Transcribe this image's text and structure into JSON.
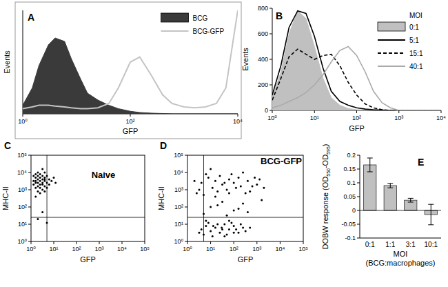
{
  "chart_data": [
    {
      "label": "A",
      "type": "line",
      "xlabel": "GFP",
      "ylabel": "Events",
      "log": "x",
      "x": [
        1,
        1.5,
        2,
        3,
        4,
        6,
        8,
        12,
        16,
        25,
        40,
        60,
        100,
        150,
        250,
        400,
        600,
        1000,
        1600,
        2500,
        4000,
        6000,
        10000
      ],
      "xlim": [
        1,
        10000
      ],
      "xticks": [
        {
          "value": 1,
          "label": "10⁰"
        },
        {
          "value": 100,
          "label": "10²"
        },
        {
          "value": 10000,
          "label": "10⁴"
        }
      ],
      "ylim": [
        0,
        600
      ],
      "tick_labels": "x",
      "legend": "top right",
      "series": [
        {
          "name": "BCG",
          "type": "area",
          "color": "#3a3a3a",
          "values": [
            50,
            150,
            280,
            400,
            440,
            420,
            320,
            200,
            120,
            80,
            50,
            30,
            15,
            8,
            4,
            2,
            0,
            0,
            0,
            0,
            0,
            0,
            0
          ]
        },
        {
          "name": "BCG-GFP",
          "type": "line",
          "color": "#c4c4c4",
          "values": [
            30,
            40,
            50,
            50,
            45,
            40,
            35,
            30,
            30,
            35,
            60,
            150,
            300,
            330,
            220,
            110,
            60,
            40,
            35,
            40,
            60,
            150,
            600
          ]
        }
      ]
    },
    {
      "label": "B",
      "type": "line",
      "xlabel": "GFP",
      "ylabel": "Events",
      "log": "x",
      "x": [
        1,
        1.6,
        2.5,
        4,
        6.3,
        10,
        16,
        25,
        40,
        63,
        100,
        160,
        250,
        400,
        630,
        1000,
        2500,
        10000
      ],
      "xlim": [
        1,
        10000
      ],
      "xticks": [
        {
          "value": 1,
          "label": "10⁰"
        },
        {
          "value": 10,
          "label": "10¹"
        },
        {
          "value": 100,
          "label": "10²"
        },
        {
          "value": 1000,
          "label": "10³"
        },
        {
          "value": 10000,
          "label": "10⁴"
        }
      ],
      "ylim": [
        0,
        800
      ],
      "yticks": [
        0,
        200,
        400,
        600,
        800
      ],
      "legend": "top right",
      "legend_title": "MOI",
      "series": [
        {
          "name": "0:1",
          "type": "area",
          "color": "#c0c0c0",
          "values": [
            100,
            300,
            600,
            780,
            720,
            500,
            250,
            100,
            40,
            15,
            5,
            2,
            0,
            0,
            0,
            0,
            0,
            0
          ]
        },
        {
          "name": "5:1",
          "type": "line",
          "color": "#000000",
          "line_style": "solid",
          "values": [
            120,
            350,
            650,
            780,
            760,
            580,
            330,
            150,
            70,
            40,
            20,
            10,
            5,
            2,
            0,
            0,
            0,
            0
          ]
        },
        {
          "name": "15:1",
          "type": "line",
          "color": "#000000",
          "line_style": "dashed",
          "values": [
            80,
            250,
            420,
            480,
            440,
            400,
            430,
            440,
            350,
            220,
            120,
            50,
            20,
            5,
            0,
            0,
            0,
            0
          ]
        },
        {
          "name": "40:1",
          "type": "line",
          "color": "#aaaaaa",
          "line_style": "solid",
          "values": [
            20,
            40,
            70,
            100,
            140,
            200,
            280,
            380,
            470,
            500,
            430,
            300,
            150,
            60,
            20,
            0,
            0,
            0
          ]
        }
      ]
    },
    {
      "label": "C",
      "type": "scatter",
      "title": "Naive",
      "xlabel": "GFP",
      "ylabel": "MHC-II",
      "log": true,
      "xlim": [
        1,
        100000
      ],
      "ylim": [
        1,
        100000
      ],
      "xticks": [
        {
          "value": 1,
          "label": "10⁰"
        },
        {
          "value": 10,
          "label": "10¹"
        },
        {
          "value": 100,
          "label": "10²"
        },
        {
          "value": 1000,
          "label": "10³"
        },
        {
          "value": 10000,
          "label": "10⁴"
        },
        {
          "value": 100000,
          "label": "10⁵"
        }
      ],
      "yticks": [
        {
          "value": 1,
          "label": "10⁰"
        },
        {
          "value": 10,
          "label": "10¹"
        },
        {
          "value": 100,
          "label": "10²"
        },
        {
          "value": 1000,
          "label": "10³"
        },
        {
          "value": 10000,
          "label": "10⁴"
        },
        {
          "value": 100000,
          "label": "10⁵"
        }
      ],
      "quadrant_x": 5,
      "quadrant_y": 25,
      "color": "#000000",
      "marker": "dot",
      "x": [
        1.6,
        2,
        2.5,
        3.2,
        4,
        2,
        1.3,
        3.2,
        2.5,
        5,
        4,
        2,
        1.6,
        6.3,
        3.2,
        2.5,
        1.3,
        4,
        2,
        5,
        3.2,
        1.6,
        2.5,
        8,
        2,
        4,
        1.3,
        3.2,
        6.3,
        2.5,
        1.6,
        5,
        2,
        3.2,
        4,
        1.6,
        10,
        2.5,
        3.2,
        2,
        5,
        1.6,
        12,
        4
      ],
      "y": [
        2500,
        4000,
        3200,
        2000,
        5000,
        1600,
        3200,
        6300,
        1300,
        2500,
        1600,
        10000,
        5000,
        4000,
        1000,
        8000,
        2000,
        3200,
        2500,
        6300,
        4000,
        1300,
        5000,
        3200,
        800,
        10000,
        6300,
        2500,
        2000,
        2000,
        8000,
        1300,
        6300,
        16000,
        800,
        3200,
        5000,
        630,
        50,
        20,
        12,
        400,
        2500,
        4000
      ]
    },
    {
      "label": "D",
      "type": "scatter",
      "title": "BCG-GFP",
      "xlabel": "GFP",
      "ylabel": "MHC-II",
      "log": true,
      "xlim": [
        1,
        100000
      ],
      "ylim": [
        1,
        100000
      ],
      "xticks": [
        {
          "value": 1,
          "label": "10⁰"
        },
        {
          "value": 10,
          "label": "10¹"
        },
        {
          "value": 100,
          "label": "10²"
        },
        {
          "value": 1000,
          "label": "10³"
        },
        {
          "value": 10000,
          "label": "10⁴"
        },
        {
          "value": 100000,
          "label": "10⁵"
        }
      ],
      "yticks": [
        {
          "value": 1,
          "label": "10⁰"
        },
        {
          "value": 10,
          "label": "10¹"
        },
        {
          "value": 100,
          "label": "10²"
        },
        {
          "value": 1000,
          "label": "10³"
        },
        {
          "value": 10000,
          "label": "10⁴"
        },
        {
          "value": 100000,
          "label": "10⁵"
        }
      ],
      "quadrant_x": 5,
      "quadrant_y": 25,
      "color": "#000000",
      "marker": "dot",
      "x": [
        2,
        4,
        8,
        16,
        32,
        63,
        100,
        200,
        400,
        1000,
        2000,
        3.2,
        6.3,
        12,
        25,
        50,
        80,
        160,
        320,
        630,
        1300,
        5,
        10,
        20,
        40,
        125,
        250,
        500,
        2.5,
        16,
        63,
        800,
        10,
        32,
        100,
        250,
        5,
        50,
        400,
        1600,
        20,
        160,
        4,
        6.3,
        10,
        16,
        25,
        40,
        63,
        100,
        160,
        250,
        5,
        8,
        12,
        20,
        32,
        50,
        80,
        126,
        200,
        320,
        3.2,
        500,
        6.3,
        40,
        63,
        100,
        13,
        30
      ],
      "y": [
        3200,
        2500,
        5000,
        3200,
        2000,
        4000,
        2500,
        1600,
        3200,
        2000,
        1300,
        1000,
        8000,
        1300,
        6300,
        1000,
        8000,
        5000,
        630,
        1600,
        4000,
        500,
        16000,
        800,
        2500,
        1300,
        10000,
        800,
        630,
        400,
        630,
        5000,
        100,
        200,
        63,
        160,
        40,
        32,
        50,
        250,
        126,
        80,
        5,
        8,
        4,
        6.3,
        3.2,
        10,
        5,
        8,
        3.2,
        6.3,
        2.5,
        12,
        2,
        10,
        5,
        2.5,
        12,
        5,
        10,
        4,
        3.2,
        6.3,
        16,
        2,
        16,
        3.2,
        8,
        6.3
      ]
    },
    {
      "label": "E",
      "type": "bar",
      "ylabel": "DOBW response (OD550-OD595)",
      "xlabel": [
        "MOI",
        "(BCG:macrophages)"
      ],
      "categories": [
        "0:1",
        "1:1",
        "3:1",
        "10:1"
      ],
      "values": [
        0.165,
        0.09,
        0.037,
        -0.015
      ],
      "errors": [
        0.025,
        0.008,
        0.007,
        0.037
      ],
      "color": "#c0c0c0",
      "ylim": [
        -0.1,
        0.2
      ],
      "yticks": [
        -0.1,
        -0.05,
        0,
        0.05,
        0.1,
        0.15,
        0.2
      ]
    }
  ]
}
